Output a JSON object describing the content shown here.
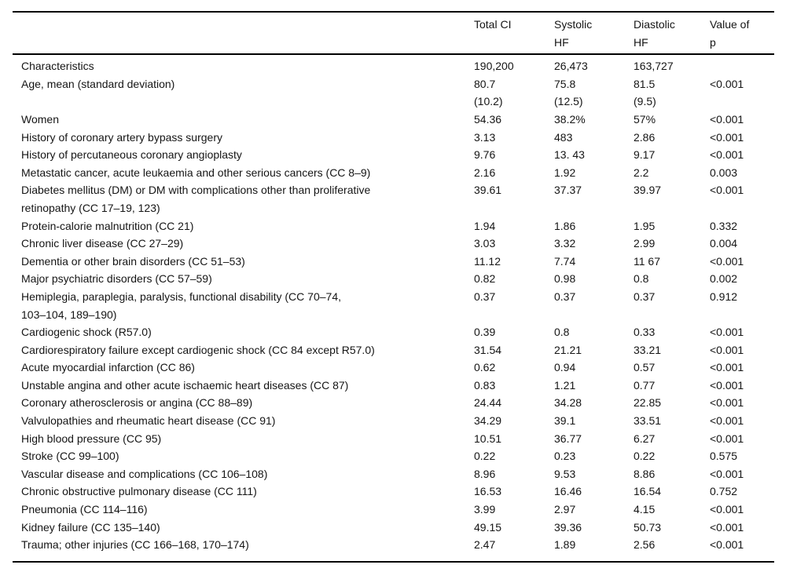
{
  "table": {
    "headers": {
      "label": "",
      "total": "Total CI",
      "systolic": "Systolic\nHF",
      "diastolic": "Diastolic\nHF",
      "p": "Value of\np"
    },
    "rows": [
      {
        "label": "Characteristics",
        "total": "190,200",
        "systolic": "26,473",
        "diastolic": "163,727",
        "p": ""
      },
      {
        "label": "Age, mean (standard deviation)",
        "total": "80.7\n(10.2)",
        "systolic": "75.8\n(12.5)",
        "diastolic": "81.5\n(9.5)",
        "p": "<0.001"
      },
      {
        "label": "Women",
        "total": "54.36",
        "systolic": "38.2%",
        "diastolic": "57%",
        "p": "<0.001"
      },
      {
        "label": "History of coronary artery bypass surgery",
        "total": "3.13",
        "systolic": "483",
        "diastolic": "2.86",
        "p": "<0.001"
      },
      {
        "label": "History of percutaneous coronary angioplasty",
        "total": "9.76",
        "systolic": "13. 43",
        "diastolic": "9.17",
        "p": "<0.001"
      },
      {
        "label": "Metastatic cancer, acute leukaemia and other serious cancers (CC 8–9)",
        "total": "2.16",
        "systolic": "1.92",
        "diastolic": "2.2",
        "p": "0.003"
      },
      {
        "label": "Diabetes mellitus (DM) or DM with complications other than proliferative\nretinopathy (CC 17–19, 123)",
        "total": "39.61",
        "systolic": "37.37",
        "diastolic": "39.97",
        "p": "<0.001"
      },
      {
        "label": "Protein-calorie malnutrition (CC 21)",
        "total": "1.94",
        "systolic": "1.86",
        "diastolic": "1.95",
        "p": "0.332"
      },
      {
        "label": "Chronic liver disease (CC 27–29)",
        "total": "3.03",
        "systolic": "3.32",
        "diastolic": "2.99",
        "p": "0.004"
      },
      {
        "label": "Dementia or other brain disorders (CC 51–53)",
        "total": "11.12",
        "systolic": "7.74",
        "diastolic": "11 67",
        "p": "<0.001"
      },
      {
        "label": "Major psychiatric disorders (CC 57–59)",
        "total": "0.82",
        "systolic": "0.98",
        "diastolic": "0.8",
        "p": "0.002"
      },
      {
        "label": "Hemiplegia, paraplegia, paralysis, functional disability (CC 70–74,\n103–104, 189–190)",
        "total": "0.37",
        "systolic": "0.37",
        "diastolic": "0.37",
        "p": "0.912"
      },
      {
        "label": "Cardiogenic shock (R57.0)",
        "total": "0.39",
        "systolic": "0.8",
        "diastolic": "0.33",
        "p": "<0.001"
      },
      {
        "label": "Cardiorespiratory failure except cardiogenic shock (CC 84 except R57.0)",
        "total": "31.54",
        "systolic": "21.21",
        "diastolic": "33.21",
        "p": "<0.001"
      },
      {
        "label": "Acute myocardial infarction (CC 86)",
        "total": "0.62",
        "systolic": "0.94",
        "diastolic": "0.57",
        "p": "<0.001"
      },
      {
        "label": "Unstable angina and other acute ischaemic heart diseases (CC 87)",
        "total": "0.83",
        "systolic": "1.21",
        "diastolic": "0.77",
        "p": "<0.001"
      },
      {
        "label": "Coronary atherosclerosis or angina (CC 88–89)",
        "total": "24.44",
        "systolic": "34.28",
        "diastolic": "22.85",
        "p": "<0.001"
      },
      {
        "label": "Valvulopathies and rheumatic heart disease (CC 91)",
        "total": "34.29",
        "systolic": "39.1",
        "diastolic": "33.51",
        "p": "<0.001"
      },
      {
        "label": "High blood pressure (CC 95)",
        "total": "10.51",
        "systolic": "36.77",
        "diastolic": "6.27",
        "p": "<0.001"
      },
      {
        "label": "Stroke (CC 99–100)",
        "total": "0.22",
        "systolic": "0.23",
        "diastolic": "0.22",
        "p": "0.575"
      },
      {
        "label": "Vascular disease and complications (CC 106–108)",
        "total": "8.96",
        "systolic": "9.53",
        "diastolic": "8.86",
        "p": "<0.001"
      },
      {
        "label": "Chronic obstructive pulmonary disease (CC 111)",
        "total": "16.53",
        "systolic": "16.46",
        "diastolic": "16.54",
        "p": "0.752"
      },
      {
        "label": "Pneumonia (CC 114–116)",
        "total": "3.99",
        "systolic": "2.97",
        "diastolic": "4.15",
        "p": "<0.001"
      },
      {
        "label": "Kidney failure (CC 135–140)",
        "total": "49.15",
        "systolic": "39.36",
        "diastolic": "50.73",
        "p": "<0.001"
      },
      {
        "label": "Trauma; other injuries (CC 166–168, 170–174)",
        "total": "2.47",
        "systolic": "1.89",
        "diastolic": "2.56",
        "p": "<0.001"
      }
    ]
  }
}
